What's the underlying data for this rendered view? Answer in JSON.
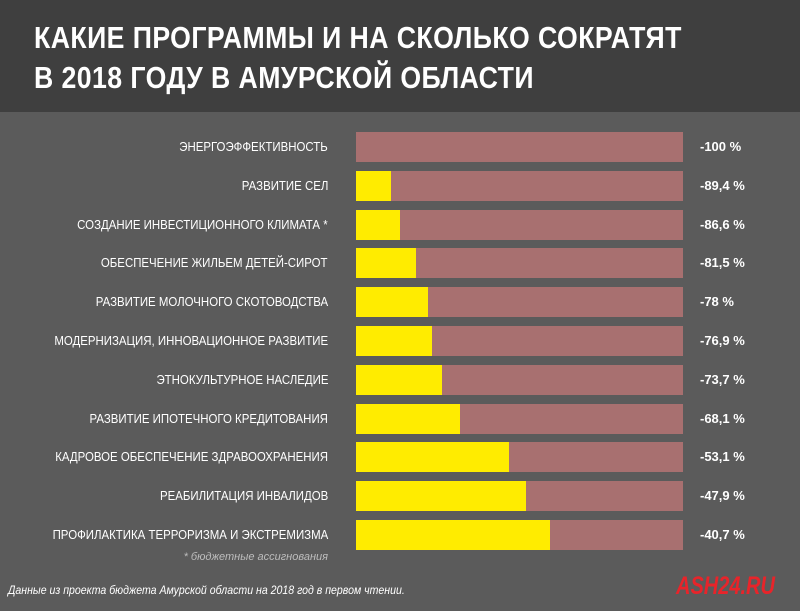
{
  "chart_data": {
    "type": "bar",
    "title": "КАКИЕ ПРОГРАММЫ И НА СКОЛЬКО СОКРАТЯТ В 2018 ГОДУ В АМУРСКОЙ ОБЛАСТИ",
    "title_lines": [
      "КАКИЕ ПРОГРАММЫ И НА СКОЛЬКО СОКРАТЯТ",
      "В 2018 ГОДУ В АМУРСКОЙ ОБЛАСТИ"
    ],
    "categories": [
      "ЭНЕРГОЭФФЕКТИВНОСТЬ",
      "РАЗВИТИЕ СЕЛ",
      "СОЗДАНИЕ  ИНВЕСТИЦИОННОГО КЛИМАТА *",
      "ОБЕСПЕЧЕНИЕ ЖИЛЬЕМ ДЕТЕЙ-СИРОТ",
      "РАЗВИТИЕ МОЛОЧНОГО СКОТОВОДСТВА",
      "МОДЕРНИЗАЦИЯ, ИННОВАЦИОННОЕ РАЗВИТИЕ",
      "ЭТНОКУЛЬТУРНОЕ НАСЛЕДИЕ",
      "РАЗВИТИЕ ИПОТЕЧНОГО КРЕДИТОВАНИЯ",
      "КАДРОВОЕ ОБЕСПЕЧЕНИЕ ЗДРАВООХРАНЕНИЯ",
      "РЕАБИЛИТАЦИЯ ИНВАЛИДОВ",
      "ПРОФИЛАКТИКА ТЕРРОРИЗМА И ЭКСТРЕМИЗМА"
    ],
    "values": [
      -100,
      -89.4,
      -86.6,
      -81.5,
      -78,
      -76.9,
      -73.7,
      -68.1,
      -53.1,
      -47.9,
      -40.7
    ],
    "value_labels": [
      "-100 %",
      "-89,4 %",
      "-86,6 %",
      "-81,5 %",
      "-78 %",
      "-76,9 %",
      "-73,7 %",
      "-68,1 %",
      "-53,1 %",
      "-47,9 %",
      "-40,7 %"
    ],
    "xlim": [
      0,
      100
    ],
    "colors": {
      "remaining": "#ffec00",
      "cut": "#a87070"
    },
    "note": "* бюджетные ассигнования"
  },
  "footer": {
    "source": "Данные из проекта бюджета Амурской области на 2018 год в первом чтении.",
    "logo": "ASH24.RU"
  }
}
